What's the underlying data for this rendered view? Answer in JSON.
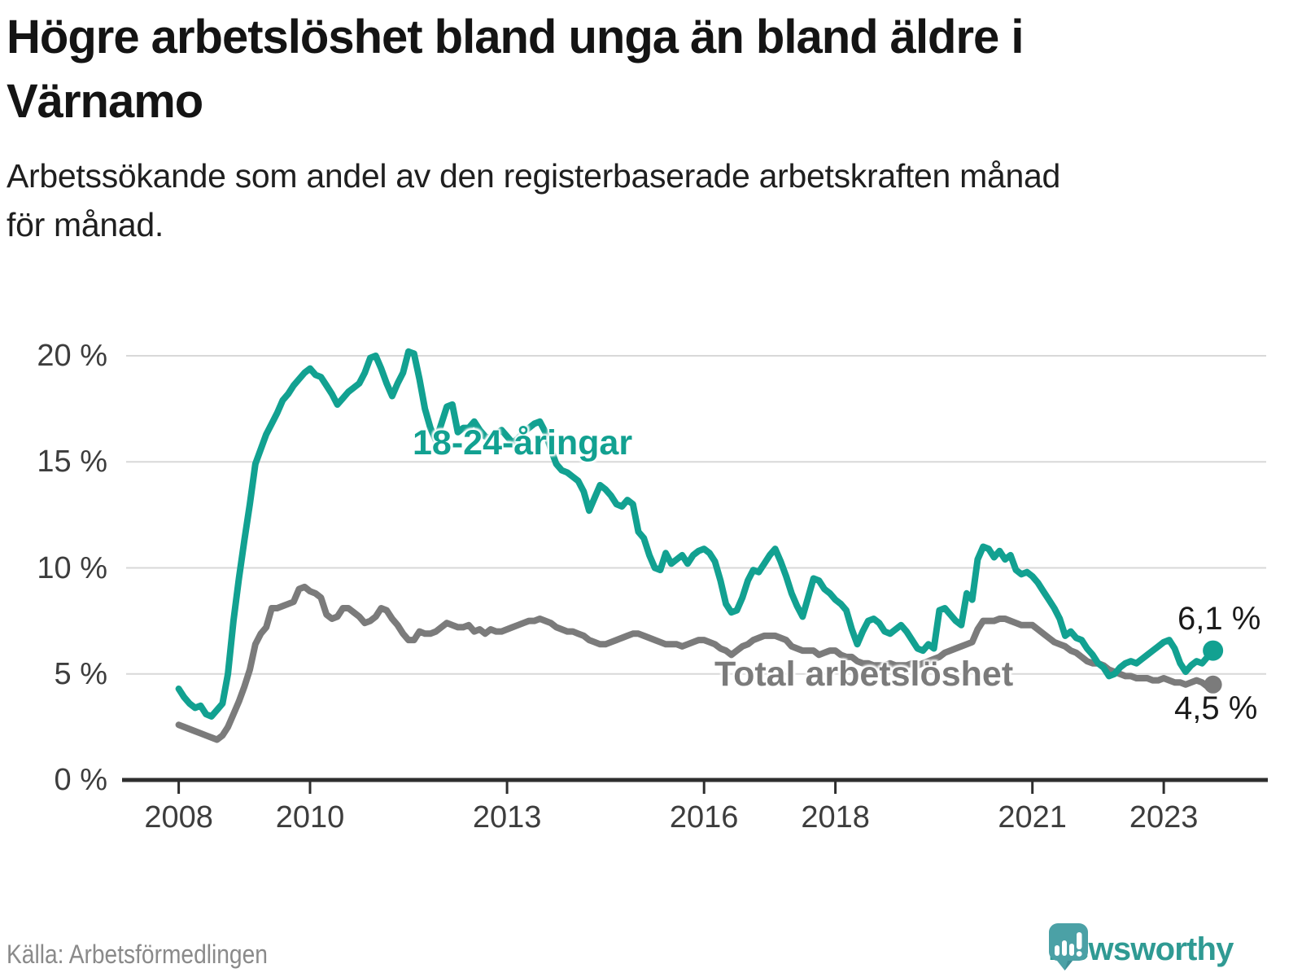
{
  "header": {
    "title_lines": [
      "Högre arbetslöshet bland unga än bland äldre i",
      "Värnamo"
    ],
    "subtitle_lines": [
      "Arbetssökande som andel av den registerbaserade arbetskraften månad",
      "för månad."
    ]
  },
  "footer": {
    "source_label": "Källa: Arbetsförmedlingen",
    "brand_name": "Newsworthy",
    "brand_icon": "newsworthy-speech-bubble-chart-icon"
  },
  "colors": {
    "youth_line": "#12A191",
    "total_line": "#7B7B7B",
    "gridline": "#D8D8D8",
    "axis": "#2E2E2E",
    "tick_text": "#3D3D3D",
    "end_label_text": "#1A1A1A",
    "brand_teal": "#4BA1A6",
    "brand_text_teal": "#2F9A93"
  },
  "chart_data": {
    "type": "line",
    "title": "Högre arbetslöshet bland unga än bland äldre i Värnamo",
    "subtitle": "Arbetssökande som andel av den registerbaserade arbetskraften månad för månad.",
    "unit": "%",
    "frequency": "monthly",
    "x_start": "2008-01",
    "x_end": "2023-10",
    "ylim": [
      0,
      21
    ],
    "grid": "horizontal",
    "legend": "inline-labels",
    "y_ticks": [
      {
        "value": 0,
        "label": "0 %"
      },
      {
        "value": 5,
        "label": "5 %"
      },
      {
        "value": 10,
        "label": "10 %"
      },
      {
        "value": 15,
        "label": "15 %"
      },
      {
        "value": 20,
        "label": "20 %"
      }
    ],
    "y_gridlines": [
      5,
      10,
      15,
      20
    ],
    "x_ticks": [
      {
        "year": 2008,
        "label": "2008"
      },
      {
        "year": 2010,
        "label": "2010"
      },
      {
        "year": 2013,
        "label": "2013"
      },
      {
        "year": 2016,
        "label": "2016"
      },
      {
        "year": 2018,
        "label": "2018"
      },
      {
        "year": 2021,
        "label": "2021"
      },
      {
        "year": 2023,
        "label": "2023"
      }
    ],
    "series": [
      {
        "name": "Total arbetslöshet",
        "color": "#7B7B7B",
        "end_label": "4,5 %",
        "end_value": 4.5,
        "values": [
          2.6,
          2.5,
          2.4,
          2.3,
          2.2,
          2.1,
          2.0,
          1.9,
          2.1,
          2.5,
          3.1,
          3.7,
          4.4,
          5.2,
          6.4,
          6.9,
          7.2,
          8.1,
          8.1,
          8.2,
          8.3,
          8.4,
          9.0,
          9.1,
          8.9,
          8.8,
          8.6,
          7.8,
          7.6,
          7.7,
          8.1,
          8.1,
          7.9,
          7.7,
          7.4,
          7.5,
          7.7,
          8.1,
          8.0,
          7.6,
          7.3,
          6.9,
          6.6,
          6.6,
          7.0,
          6.9,
          6.9,
          7.0,
          7.2,
          7.4,
          7.3,
          7.2,
          7.2,
          7.3,
          7.0,
          7.1,
          6.9,
          7.1,
          7.0,
          7.0,
          7.1,
          7.2,
          7.3,
          7.4,
          7.5,
          7.5,
          7.6,
          7.5,
          7.4,
          7.2,
          7.1,
          7.0,
          7.0,
          6.9,
          6.8,
          6.6,
          6.5,
          6.4,
          6.4,
          6.5,
          6.6,
          6.7,
          6.8,
          6.9,
          6.9,
          6.8,
          6.7,
          6.6,
          6.5,
          6.4,
          6.4,
          6.4,
          6.3,
          6.4,
          6.5,
          6.6,
          6.6,
          6.5,
          6.4,
          6.2,
          6.1,
          5.9,
          6.1,
          6.3,
          6.4,
          6.6,
          6.7,
          6.8,
          6.8,
          6.8,
          6.7,
          6.6,
          6.3,
          6.2,
          6.1,
          6.1,
          6.1,
          5.9,
          6.0,
          6.1,
          6.1,
          5.9,
          5.8,
          5.8,
          5.6,
          5.5,
          5.5,
          5.4,
          5.4,
          5.4,
          5.5,
          5.4,
          5.4,
          5.4,
          5.5,
          5.4,
          5.5,
          5.6,
          5.7,
          5.8,
          6.0,
          6.1,
          6.2,
          6.3,
          6.4,
          6.5,
          7.1,
          7.5,
          7.5,
          7.5,
          7.6,
          7.6,
          7.5,
          7.4,
          7.3,
          7.3,
          7.3,
          7.1,
          6.9,
          6.7,
          6.5,
          6.4,
          6.3,
          6.1,
          6.0,
          5.8,
          5.6,
          5.5,
          5.5,
          5.4,
          5.2,
          5.1,
          5.0,
          4.9,
          4.9,
          4.8,
          4.8,
          4.8,
          4.7,
          4.7,
          4.8,
          4.7,
          4.6,
          4.6,
          4.5,
          4.6,
          4.7,
          4.6,
          4.4,
          4.5
        ]
      },
      {
        "name": "18-24-åringar",
        "color": "#12A191",
        "end_label": "6,1 %",
        "end_value": 6.1,
        "values": [
          4.3,
          3.9,
          3.6,
          3.4,
          3.5,
          3.1,
          3.0,
          3.3,
          3.6,
          5.0,
          7.5,
          9.5,
          11.3,
          13.0,
          14.9,
          15.6,
          16.3,
          16.8,
          17.3,
          17.9,
          18.2,
          18.6,
          18.9,
          19.2,
          19.4,
          19.1,
          19.0,
          18.6,
          18.2,
          17.7,
          18.0,
          18.3,
          18.5,
          18.7,
          19.2,
          19.9,
          20.0,
          19.4,
          18.7,
          18.1,
          18.7,
          19.2,
          20.2,
          20.1,
          18.9,
          17.5,
          16.6,
          16.0,
          16.8,
          17.6,
          17.7,
          16.4,
          16.6,
          16.6,
          16.9,
          16.5,
          16.2,
          16.1,
          16.3,
          16.5,
          16.2,
          15.9,
          16.1,
          16.4,
          16.6,
          16.8,
          16.9,
          16.4,
          15.6,
          14.9,
          14.6,
          14.5,
          14.3,
          14.1,
          13.6,
          12.7,
          13.3,
          13.9,
          13.7,
          13.4,
          13.0,
          12.9,
          13.2,
          13.0,
          11.7,
          11.4,
          10.6,
          10.0,
          9.9,
          10.7,
          10.2,
          10.4,
          10.6,
          10.2,
          10.6,
          10.8,
          10.9,
          10.7,
          10.3,
          9.4,
          8.3,
          7.9,
          8.0,
          8.6,
          9.4,
          9.9,
          9.8,
          10.2,
          10.6,
          10.9,
          10.3,
          9.6,
          8.8,
          8.2,
          7.7,
          8.6,
          9.5,
          9.4,
          9.0,
          8.8,
          8.5,
          8.3,
          8.0,
          7.1,
          6.4,
          7.0,
          7.5,
          7.6,
          7.4,
          7.0,
          6.9,
          7.1,
          7.3,
          7.0,
          6.6,
          6.2,
          6.1,
          6.4,
          6.2,
          8.0,
          8.1,
          7.8,
          7.5,
          7.3,
          8.8,
          8.5,
          10.4,
          11.0,
          10.9,
          10.5,
          10.8,
          10.4,
          10.6,
          9.9,
          9.7,
          9.8,
          9.6,
          9.3,
          8.9,
          8.5,
          8.1,
          7.6,
          6.8,
          7.0,
          6.7,
          6.6,
          6.2,
          5.9,
          5.5,
          5.3,
          4.9,
          5.0,
          5.3,
          5.5,
          5.6,
          5.5,
          5.7,
          5.9,
          6.1,
          6.3,
          6.5,
          6.6,
          6.2,
          5.5,
          5.1,
          5.4,
          5.6,
          5.5,
          5.8,
          6.1
        ]
      }
    ]
  }
}
